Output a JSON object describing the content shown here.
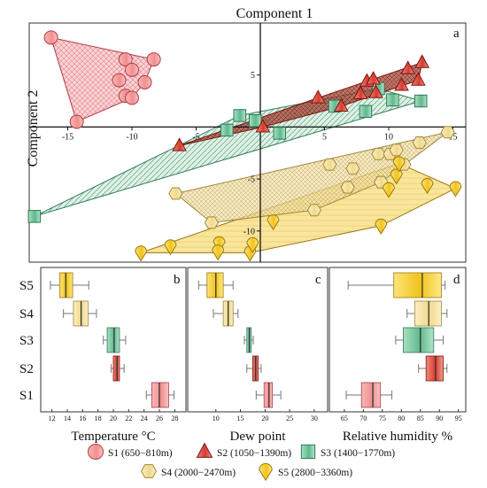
{
  "chart_data": [
    {
      "type": "scatter",
      "panel": "a",
      "xlabel": "Component 1",
      "ylabel": "Component 2",
      "xlim": [
        -18,
        16
      ],
      "ylim": [
        -13,
        10
      ],
      "xticks": [
        -15,
        -10,
        -5,
        5,
        10,
        15
      ],
      "yticks": [
        5,
        -5,
        -10
      ],
      "convex_hulls": true,
      "series": [
        {
          "name": "S1 (650−810m)",
          "marker": "circle",
          "color": "#f08c8c",
          "points": [
            [
              -16.3,
              8.6
            ],
            [
              -10.5,
              6.5
            ],
            [
              -8.3,
              6.5
            ],
            [
              -10.0,
              5.5
            ],
            [
              -11.0,
              4.5
            ],
            [
              -9.0,
              4.3
            ],
            [
              -10.5,
              3.0
            ],
            [
              -10.0,
              2.8
            ],
            [
              -14.3,
              0.5
            ]
          ]
        },
        {
          "name": "S2 (1050−1390m)",
          "marker": "triangle",
          "color": "#d93025",
          "points": [
            [
              -6.3,
              -1.8
            ],
            [
              0.2,
              0.0
            ],
            [
              4.5,
              2.8
            ],
            [
              6.3,
              2.0
            ],
            [
              7.8,
              3.2
            ],
            [
              8.3,
              4.4
            ],
            [
              8.8,
              4.6
            ],
            [
              9.0,
              3.3
            ],
            [
              11.0,
              4.0
            ],
            [
              11.5,
              5.6
            ],
            [
              12.3,
              4.5
            ],
            [
              12.6,
              6.2
            ]
          ]
        },
        {
          "name": "S3 (1400−1770m)",
          "marker": "square",
          "color": "#6dbf98",
          "points": [
            [
              -17.6,
              -8.6
            ],
            [
              -1.6,
              1.1
            ],
            [
              -2.6,
              -0.3
            ],
            [
              -0.4,
              0.6
            ],
            [
              1.5,
              -0.6
            ],
            [
              5.8,
              2.0
            ],
            [
              8.2,
              1.5
            ],
            [
              9.2,
              3.7
            ],
            [
              10.3,
              2.6
            ],
            [
              12.5,
              2.5
            ]
          ]
        },
        {
          "name": "S4 (2000−2470m)",
          "marker": "hexagon",
          "color": "#f0de9a",
          "points": [
            [
              -6.6,
              -6.4
            ],
            [
              -3.8,
              -9.2
            ],
            [
              4.2,
              -8.0
            ],
            [
              5.4,
              -3.6
            ],
            [
              6.8,
              -5.8
            ],
            [
              7.2,
              -4.0
            ],
            [
              9.2,
              -2.6
            ],
            [
              9.4,
              -5.3
            ],
            [
              10.1,
              -2.6
            ],
            [
              10.6,
              -2.2
            ],
            [
              11.2,
              -3.6
            ],
            [
              12.4,
              -1.5
            ],
            [
              14.6,
              -0.5
            ]
          ]
        },
        {
          "name": "S5 (2800−3360m)",
          "marker": "drop",
          "color": "#f2c318",
          "points": [
            [
              -9.3,
              -12.1
            ],
            [
              -7.0,
              -11.5
            ],
            [
              -3.2,
              -11.2
            ],
            [
              -3.3,
              -12.0
            ],
            [
              -0.8,
              -12.1
            ],
            [
              -0.6,
              -11.3
            ],
            [
              1.0,
              -9.1
            ],
            [
              9.4,
              -9.5
            ],
            [
              10.0,
              -6.0
            ],
            [
              10.6,
              -4.7
            ],
            [
              10.8,
              -3.5
            ],
            [
              13.0,
              -5.6
            ],
            [
              15.2,
              -5.9
            ]
          ]
        }
      ]
    },
    {
      "type": "box",
      "panel": "b",
      "xlabel": "Temperature °C",
      "xlim": [
        11,
        29
      ],
      "xticks": [
        12,
        14,
        16,
        18,
        20,
        22,
        24,
        26,
        28
      ],
      "categories": [
        "S5",
        "S4",
        "S3",
        "S2",
        "S1"
      ],
      "boxes": [
        {
          "name": "S5",
          "min": 11.8,
          "q1": 13.0,
          "median": 13.8,
          "q3": 14.7,
          "max": 16.8
        },
        {
          "name": "S4",
          "min": 13.5,
          "q1": 14.8,
          "median": 15.8,
          "q3": 16.7,
          "max": 17.8
        },
        {
          "name": "S3",
          "min": 18.7,
          "q1": 19.2,
          "median": 20.1,
          "q3": 20.8,
          "max": 21.6
        },
        {
          "name": "S2",
          "min": 19.7,
          "q1": 20.0,
          "median": 20.5,
          "q3": 20.8,
          "max": 21.4
        },
        {
          "name": "S1",
          "min": 24.3,
          "q1": 25.0,
          "median": 26.0,
          "q3": 27.2,
          "max": 27.9
        }
      ]
    },
    {
      "type": "box",
      "panel": "c",
      "xlabel": "Dew point",
      "xlim": [
        5,
        32
      ],
      "xticks": [
        10,
        15,
        20,
        25,
        30
      ],
      "categories": [
        "S5",
        "S4",
        "S3",
        "S2",
        "S1"
      ],
      "boxes": [
        {
          "name": "S5",
          "min": 6.5,
          "q1": 8.2,
          "median": 10.0,
          "q3": 11.5,
          "max": 13.5
        },
        {
          "name": "S4",
          "min": 9.5,
          "q1": 11.5,
          "median": 12.5,
          "q3": 13.5,
          "max": 14.5
        },
        {
          "name": "S3",
          "min": 15.8,
          "q1": 16.3,
          "median": 16.8,
          "q3": 17.2,
          "max": 17.6
        },
        {
          "name": "S2",
          "min": 16.3,
          "q1": 17.5,
          "median": 18.1,
          "q3": 18.6,
          "max": 19.2
        },
        {
          "name": "S1",
          "min": 18.2,
          "q1": 19.8,
          "median": 20.8,
          "q3": 21.5,
          "max": 23.2
        }
      ]
    },
    {
      "type": "box",
      "panel": "d",
      "xlabel": "Relative humidity %",
      "xlim": [
        62,
        96
      ],
      "xticks": [
        65,
        70,
        75,
        80,
        85,
        90,
        95
      ],
      "categories": [
        "S5",
        "S4",
        "S3",
        "S2",
        "S1"
      ],
      "boxes": [
        {
          "name": "S5",
          "min": 66.0,
          "q1": 78.0,
          "median": 85.5,
          "q3": 90.5,
          "max": 91.5
        },
        {
          "name": "S4",
          "min": 81.5,
          "q1": 83.5,
          "median": 87.2,
          "q3": 90.5,
          "max": 92.0
        },
        {
          "name": "S3",
          "min": 78.5,
          "q1": 80.5,
          "median": 85.0,
          "q3": 88.5,
          "max": 91.0
        },
        {
          "name": "S2",
          "min": 84.5,
          "q1": 86.5,
          "median": 89.0,
          "q3": 91.0,
          "max": 92.0
        },
        {
          "name": "S1",
          "min": 65.5,
          "q1": 69.5,
          "median": 72.5,
          "q3": 74.5,
          "max": 77.5
        }
      ]
    }
  ],
  "legend": [
    {
      "label": "S1 (650−810m)",
      "marker": "circle"
    },
    {
      "label": "S2 (1050−1390m)",
      "marker": "triangle"
    },
    {
      "label": "S3 (1400−1770m)",
      "marker": "square"
    },
    {
      "label": "S4 (2000−2470m)",
      "marker": "hexagon"
    },
    {
      "label": "S5 (2800−3360m)",
      "marker": "drop"
    }
  ],
  "colors": {
    "S1": {
      "fill": "#f5a3a3",
      "stroke": "#b23a48"
    },
    "S2": {
      "fill": "#d93025",
      "stroke": "#7a1410"
    },
    "S3": {
      "fill": "#7ecba5",
      "stroke": "#2f7a5a"
    },
    "S4": {
      "fill": "#f4e3a6",
      "stroke": "#a08a3a"
    },
    "S5": {
      "fill": "#f5c518",
      "stroke": "#9a7a10"
    }
  }
}
